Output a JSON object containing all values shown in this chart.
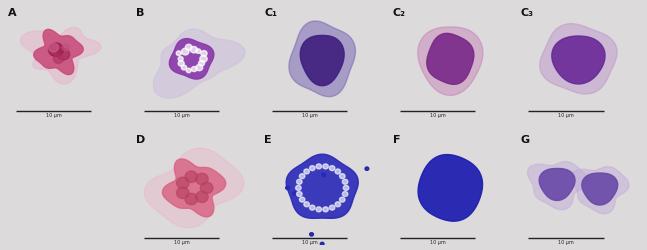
{
  "figsize": [
    6.47,
    2.51
  ],
  "dpi": 100,
  "background_color": "#dddadb",
  "top_row": {
    "labels": [
      "A",
      "B",
      "C₁",
      "C₂",
      "C₃"
    ],
    "n": 5,
    "bg_colors": [
      "#e8e6e8",
      "#e8e6ea",
      "#e4e4ec",
      "#e8e8ec",
      "#e8e6ea"
    ]
  },
  "bottom_row": {
    "labels": [
      "D",
      "E",
      "F",
      "G"
    ],
    "n": 4,
    "bg_colors": [
      "#ece8ec",
      "#e4e6f4",
      "#e2e4f4",
      "#e8e8f0"
    ]
  },
  "label_fontsize": 8,
  "label_color": "#111111",
  "scale_bar_color": "#222222",
  "scale_label_fontsize": 3.5
}
